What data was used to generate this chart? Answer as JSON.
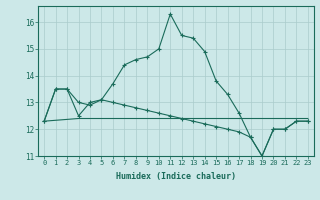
{
  "bg_color": "#cce8e8",
  "line_color": "#1a6b5a",
  "grid_color": "#aacccc",
  "xlabel": "Humidex (Indice chaleur)",
  "ylim": [
    11,
    16.6
  ],
  "xlim": [
    -0.5,
    23.5
  ],
  "yticks": [
    11,
    12,
    13,
    14,
    15,
    16
  ],
  "xticks": [
    0,
    1,
    2,
    3,
    4,
    5,
    6,
    7,
    8,
    9,
    10,
    11,
    12,
    13,
    14,
    15,
    16,
    17,
    18,
    19,
    20,
    21,
    22,
    23
  ],
  "line1_x": [
    0,
    1,
    2,
    3,
    4,
    5,
    6,
    7,
    8,
    9,
    10,
    11,
    12,
    13,
    14,
    15,
    16,
    17,
    18,
    19,
    20,
    21,
    22,
    23
  ],
  "line1_y": [
    12.3,
    13.5,
    13.5,
    12.5,
    13.0,
    13.1,
    13.7,
    14.4,
    14.6,
    14.7,
    15.0,
    16.3,
    15.5,
    15.4,
    14.9,
    13.8,
    13.3,
    12.6,
    11.7,
    11.0,
    12.0,
    12.0,
    12.3,
    12.3
  ],
  "line2_x": [
    0,
    3,
    23
  ],
  "line2_y": [
    12.3,
    12.4,
    12.4
  ],
  "line3_x": [
    0,
    1,
    2,
    3,
    4,
    5,
    6,
    7,
    8,
    9,
    10,
    11,
    12,
    13,
    14,
    15,
    16,
    17,
    18,
    19,
    20,
    21,
    22,
    23
  ],
  "line3_y": [
    12.3,
    13.5,
    13.5,
    13.0,
    12.9,
    13.1,
    13.0,
    12.9,
    12.8,
    12.7,
    12.6,
    12.5,
    12.4,
    12.3,
    12.2,
    12.1,
    12.0,
    11.9,
    11.7,
    11.0,
    12.0,
    12.0,
    12.3,
    12.3
  ]
}
